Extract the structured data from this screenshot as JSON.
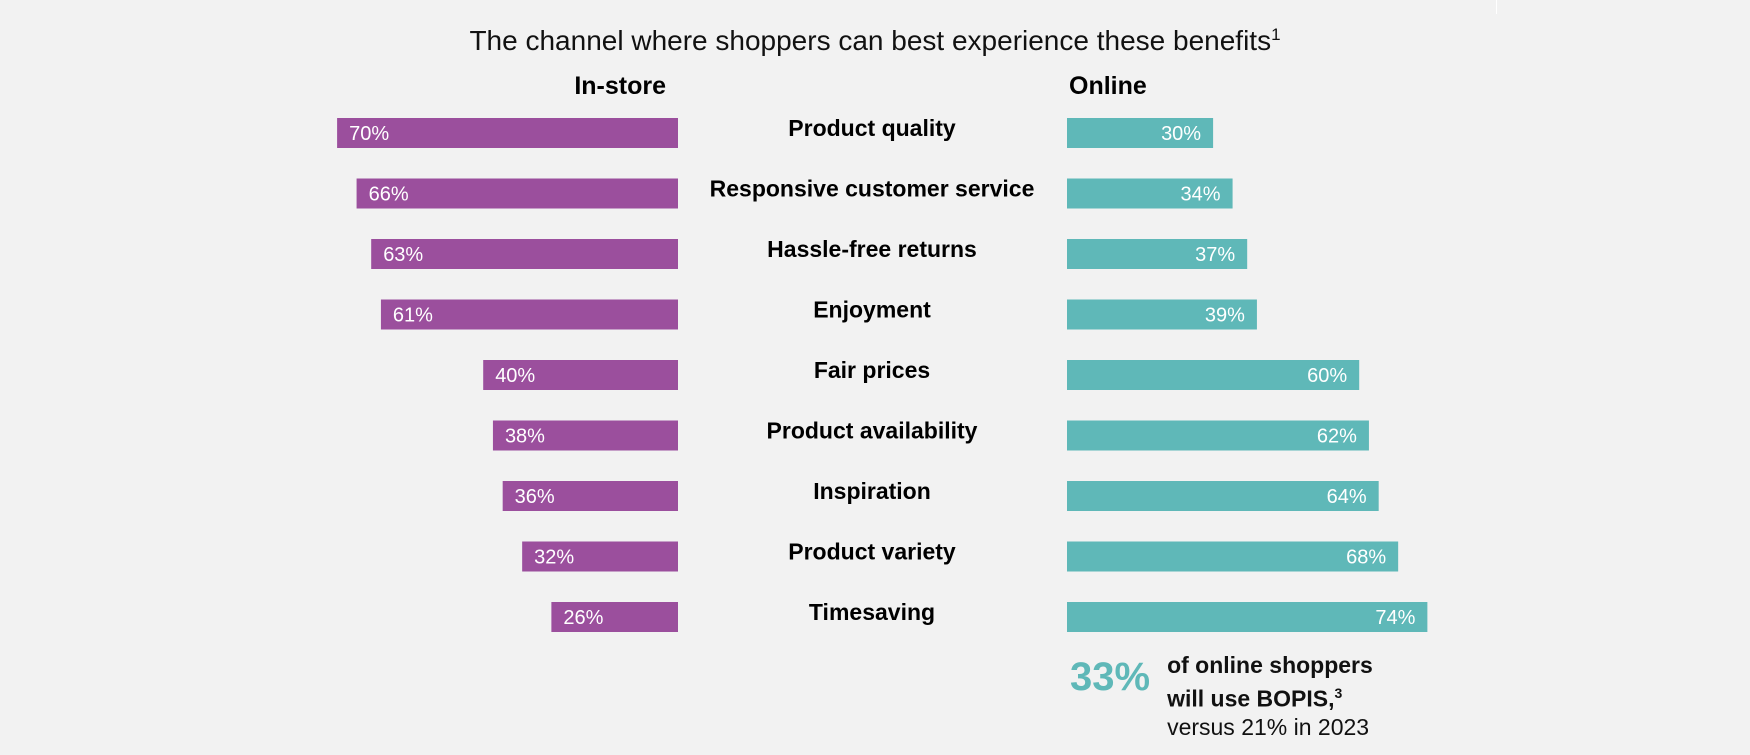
{
  "chart_data": {
    "type": "bar",
    "title": "The channel where shoppers can best experience these benefits",
    "title_superscript": "1",
    "categories": [
      "Product quality",
      "Responsive customer service",
      "Hassle-free returns",
      "Enjoyment",
      "Fair prices",
      "Product availability",
      "Inspiration",
      "Product variety",
      "Timesaving"
    ],
    "series": [
      {
        "name": "In-store",
        "color": "#9b4f9d",
        "values": [
          70,
          66,
          63,
          61,
          40,
          38,
          36,
          32,
          26
        ],
        "labels": [
          "70%",
          "66%",
          "63%",
          "61%",
          "40%",
          "38%",
          "36%",
          "32%",
          "26%"
        ]
      },
      {
        "name": "Online",
        "color": "#5fb8b8",
        "values": [
          30,
          34,
          37,
          39,
          60,
          62,
          64,
          68,
          74
        ],
        "labels": [
          "30%",
          "34%",
          "37%",
          "39%",
          "60%",
          "62%",
          "64%",
          "68%",
          "74%"
        ]
      }
    ],
    "xlim": [
      0,
      100
    ],
    "unit": "%",
    "grid": false
  },
  "callout": {
    "value": "33%",
    "line1": "of online shoppers",
    "line2": "will use BOPIS,",
    "line2_superscript": "3",
    "line3": "versus 21% in 2023"
  }
}
